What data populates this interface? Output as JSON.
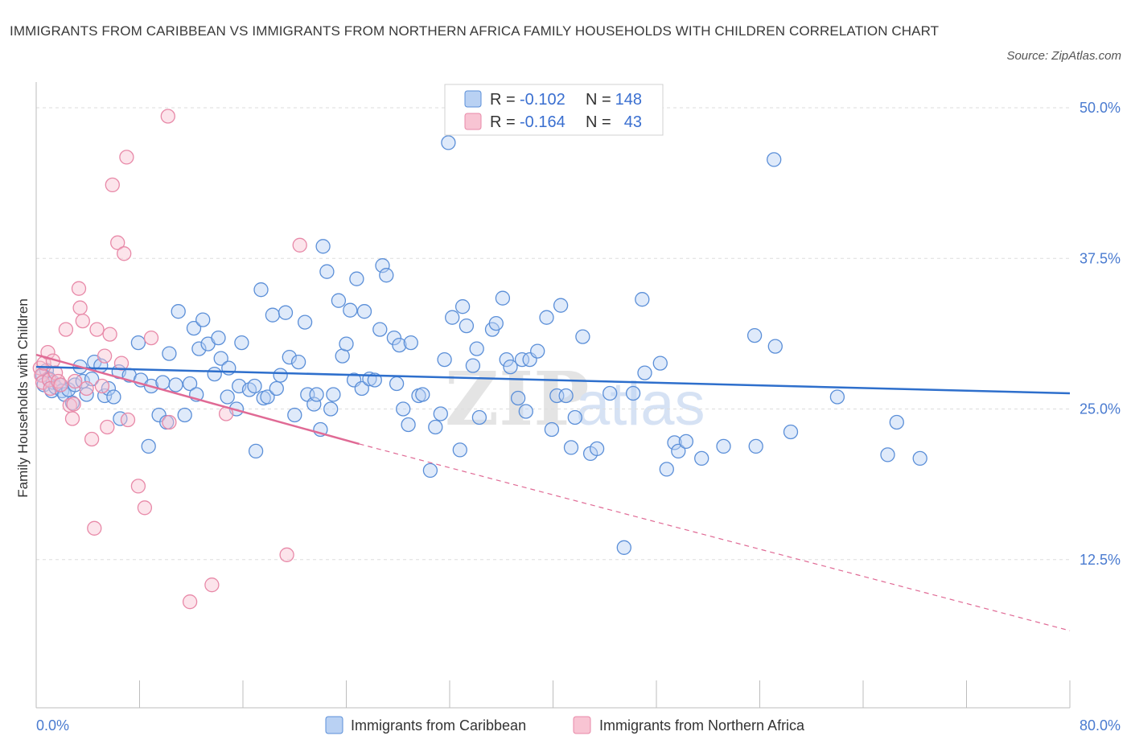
{
  "title": "IMMIGRANTS FROM CARIBBEAN VS IMMIGRANTS FROM NORTHERN AFRICA FAMILY HOUSEHOLDS WITH CHILDREN CORRELATION CHART",
  "source": "Source: ZipAtlas.com",
  "watermark": {
    "zip": "ZIP",
    "atlas": "atlas"
  },
  "legend": {
    "r_label": "R =",
    "n_label": "N =",
    "rows": [
      {
        "r": "-0.102",
        "n": "148"
      },
      {
        "r": "-0.164",
        "n": "43"
      }
    ]
  },
  "colors": {
    "caribbean_fill": "#b9d1f3",
    "caribbean_stroke": "#5b8fd8",
    "caribbean_line": "#2e6fcc",
    "nafrica_fill": "#f8c4d3",
    "nafrica_stroke": "#e889a8",
    "nafrica_line": "#e06a95",
    "grid": "#dddddd",
    "tick_text": "#4a7bd0"
  },
  "chart_data": {
    "type": "scatter",
    "title": "IMMIGRANTS FROM CARIBBEAN VS IMMIGRANTS FROM NORTHERN AFRICA FAMILY HOUSEHOLDS WITH CHILDREN CORRELATION CHART",
    "xlabel": "",
    "ylabel": "Family Households with Children",
    "xlim": [
      0,
      80
    ],
    "ylim": [
      0,
      50
    ],
    "x_tick_labels": [
      "0.0%",
      "80.0%"
    ],
    "y_ticks": [
      12.5,
      25.0,
      37.5,
      50.0
    ],
    "y_tick_labels": [
      "12.5%",
      "25.0%",
      "37.5%",
      "50.0%"
    ],
    "grid": "horizontal dashed",
    "legend_placement": "top-center",
    "series": [
      {
        "name": "Immigrants from Caribbean",
        "trend": {
          "x": [
            0,
            80
          ],
          "y": [
            28.5,
            26.3
          ]
        },
        "points": [
          [
            0.5,
            27.8
          ],
          [
            0.6,
            27.0
          ],
          [
            0.8,
            28.2
          ],
          [
            1.0,
            27.5
          ],
          [
            1.2,
            26.5
          ],
          [
            1.3,
            27.2
          ],
          [
            1.5,
            26.8
          ],
          [
            1.8,
            27.0
          ],
          [
            2.0,
            26.5
          ],
          [
            2.2,
            26.2
          ],
          [
            2.5,
            26.6
          ],
          [
            2.8,
            25.5
          ],
          [
            3.0,
            27.0
          ],
          [
            3.4,
            28.5
          ],
          [
            3.6,
            27.3
          ],
          [
            3.9,
            26.2
          ],
          [
            4.3,
            27.5
          ],
          [
            4.5,
            28.9
          ],
          [
            5.0,
            28.6
          ],
          [
            5.3,
            26.1
          ],
          [
            5.6,
            26.7
          ],
          [
            6.0,
            26.0
          ],
          [
            6.4,
            28.1
          ],
          [
            6.5,
            24.2
          ],
          [
            7.2,
            27.8
          ],
          [
            7.9,
            30.5
          ],
          [
            8.1,
            27.4
          ],
          [
            8.7,
            21.9
          ],
          [
            8.9,
            26.9
          ],
          [
            9.5,
            24.5
          ],
          [
            9.8,
            27.2
          ],
          [
            10.1,
            23.9
          ],
          [
            10.3,
            29.6
          ],
          [
            10.8,
            27.0
          ],
          [
            11.0,
            33.1
          ],
          [
            11.5,
            24.5
          ],
          [
            11.9,
            27.1
          ],
          [
            12.2,
            31.7
          ],
          [
            12.4,
            26.2
          ],
          [
            12.6,
            30.0
          ],
          [
            12.9,
            32.4
          ],
          [
            13.3,
            30.4
          ],
          [
            13.8,
            27.9
          ],
          [
            14.1,
            30.9
          ],
          [
            14.3,
            29.2
          ],
          [
            14.8,
            26.0
          ],
          [
            14.9,
            28.4
          ],
          [
            15.5,
            25.0
          ],
          [
            15.7,
            26.9
          ],
          [
            15.9,
            30.5
          ],
          [
            16.5,
            26.6
          ],
          [
            16.9,
            26.9
          ],
          [
            17.0,
            21.5
          ],
          [
            17.4,
            34.9
          ],
          [
            17.6,
            25.9
          ],
          [
            17.9,
            26.0
          ],
          [
            18.3,
            32.8
          ],
          [
            18.6,
            26.7
          ],
          [
            18.9,
            27.8
          ],
          [
            19.3,
            33.0
          ],
          [
            19.6,
            29.3
          ],
          [
            20.0,
            24.5
          ],
          [
            20.3,
            28.9
          ],
          [
            20.8,
            32.2
          ],
          [
            21.0,
            26.2
          ],
          [
            21.5,
            25.4
          ],
          [
            21.7,
            26.2
          ],
          [
            22.0,
            23.3
          ],
          [
            22.2,
            38.5
          ],
          [
            22.5,
            36.4
          ],
          [
            22.8,
            25.0
          ],
          [
            23.0,
            26.2
          ],
          [
            23.4,
            34.0
          ],
          [
            23.7,
            29.4
          ],
          [
            24.0,
            30.4
          ],
          [
            24.3,
            33.2
          ],
          [
            24.6,
            27.4
          ],
          [
            24.8,
            35.8
          ],
          [
            25.2,
            26.7
          ],
          [
            25.4,
            33.1
          ],
          [
            25.8,
            27.5
          ],
          [
            26.2,
            27.4
          ],
          [
            26.6,
            31.6
          ],
          [
            26.8,
            36.9
          ],
          [
            27.1,
            36.1
          ],
          [
            27.7,
            30.9
          ],
          [
            27.9,
            27.1
          ],
          [
            28.1,
            30.3
          ],
          [
            28.4,
            25.0
          ],
          [
            28.8,
            23.7
          ],
          [
            29.0,
            30.5
          ],
          [
            29.6,
            26.1
          ],
          [
            29.9,
            26.2
          ],
          [
            30.5,
            19.9
          ],
          [
            30.9,
            23.5
          ],
          [
            31.3,
            24.6
          ],
          [
            31.6,
            29.1
          ],
          [
            31.9,
            47.1
          ],
          [
            32.2,
            32.6
          ],
          [
            32.8,
            21.6
          ],
          [
            33.0,
            33.5
          ],
          [
            33.3,
            31.9
          ],
          [
            33.8,
            28.6
          ],
          [
            34.1,
            30.0
          ],
          [
            34.3,
            24.3
          ],
          [
            35.3,
            31.6
          ],
          [
            35.6,
            32.1
          ],
          [
            36.1,
            34.2
          ],
          [
            36.4,
            29.1
          ],
          [
            36.7,
            28.5
          ],
          [
            37.3,
            25.9
          ],
          [
            37.6,
            29.1
          ],
          [
            37.9,
            24.8
          ],
          [
            38.2,
            29.1
          ],
          [
            38.8,
            29.8
          ],
          [
            39.5,
            32.6
          ],
          [
            39.9,
            23.3
          ],
          [
            40.3,
            26.1
          ],
          [
            40.6,
            33.6
          ],
          [
            41.0,
            26.1
          ],
          [
            41.4,
            21.8
          ],
          [
            41.7,
            24.3
          ],
          [
            42.3,
            31.0
          ],
          [
            42.9,
            21.3
          ],
          [
            43.4,
            21.7
          ],
          [
            44.4,
            26.3
          ],
          [
            45.5,
            13.5
          ],
          [
            46.2,
            26.3
          ],
          [
            46.9,
            34.1
          ],
          [
            47.1,
            28.0
          ],
          [
            48.3,
            28.8
          ],
          [
            48.8,
            20.0
          ],
          [
            49.4,
            22.2
          ],
          [
            49.7,
            21.5
          ],
          [
            50.3,
            22.3
          ],
          [
            51.5,
            20.9
          ],
          [
            53.2,
            21.9
          ],
          [
            55.6,
            31.1
          ],
          [
            55.7,
            21.9
          ],
          [
            57.1,
            45.7
          ],
          [
            57.2,
            30.2
          ],
          [
            58.4,
            23.1
          ],
          [
            62.0,
            26.0
          ],
          [
            65.9,
            21.2
          ],
          [
            66.6,
            23.9
          ],
          [
            68.4,
            20.9
          ]
        ]
      },
      {
        "name": "Immigrants from Northern Africa",
        "trend": {
          "x": [
            0,
            25
          ],
          "y": [
            29.5,
            22.1
          ]
        },
        "trend_extended": {
          "x": [
            25,
            80
          ],
          "y": [
            22.1,
            6.6
          ]
        },
        "points": [
          [
            0.3,
            28.4
          ],
          [
            0.4,
            27.8
          ],
          [
            0.5,
            27.2
          ],
          [
            0.6,
            28.8
          ],
          [
            0.9,
            29.7
          ],
          [
            1.0,
            27.4
          ],
          [
            1.1,
            26.7
          ],
          [
            1.3,
            29.0
          ],
          [
            1.5,
            28.0
          ],
          [
            1.7,
            27.3
          ],
          [
            1.9,
            27.0
          ],
          [
            2.3,
            31.6
          ],
          [
            2.6,
            25.3
          ],
          [
            2.8,
            24.2
          ],
          [
            2.9,
            25.4
          ],
          [
            3.0,
            27.3
          ],
          [
            3.3,
            35.0
          ],
          [
            3.4,
            33.4
          ],
          [
            3.6,
            32.3
          ],
          [
            3.9,
            26.7
          ],
          [
            4.3,
            22.5
          ],
          [
            4.5,
            15.1
          ],
          [
            4.7,
            31.6
          ],
          [
            5.1,
            26.9
          ],
          [
            5.3,
            29.4
          ],
          [
            5.5,
            23.5
          ],
          [
            5.7,
            31.2
          ],
          [
            5.9,
            43.6
          ],
          [
            6.3,
            38.8
          ],
          [
            6.6,
            28.8
          ],
          [
            6.8,
            37.9
          ],
          [
            7.0,
            45.9
          ],
          [
            7.1,
            24.1
          ],
          [
            7.9,
            18.6
          ],
          [
            8.4,
            16.8
          ],
          [
            8.9,
            30.9
          ],
          [
            10.2,
            49.3
          ],
          [
            10.3,
            23.9
          ],
          [
            11.9,
            9.0
          ],
          [
            13.6,
            10.4
          ],
          [
            14.7,
            24.6
          ],
          [
            19.4,
            12.9
          ],
          [
            20.4,
            38.6
          ]
        ]
      }
    ]
  },
  "bottom_legend": [
    {
      "label": "Immigrants from Caribbean"
    },
    {
      "label": "Immigrants from Northern Africa"
    }
  ]
}
